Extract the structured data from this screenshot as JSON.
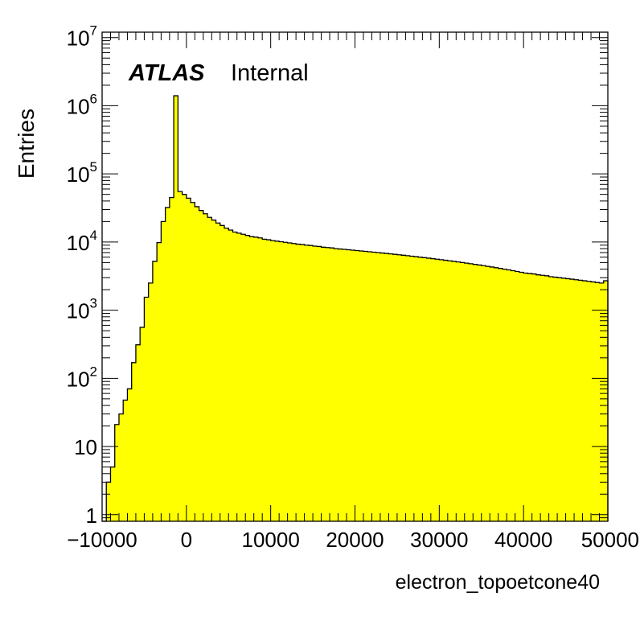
{
  "chart_data": {
    "type": "bar",
    "xlabel": "electron_topoetcone40",
    "ylabel": "Entries",
    "xlim": [
      -10000,
      50000
    ],
    "ylim": [
      0.8,
      12000000
    ],
    "ylog": true,
    "fill_color": "#ffff00",
    "line_color": "#000000",
    "bin_width": 500,
    "x_ticks": [
      "−10000",
      "0",
      "10000",
      "20000",
      "30000",
      "40000",
      "50000"
    ],
    "x_tick_values": [
      -10000,
      0,
      10000,
      20000,
      30000,
      40000,
      50000
    ],
    "y_ticks": [
      {
        "value": 1,
        "base": "1",
        "exp": ""
      },
      {
        "value": 10,
        "base": "10",
        "exp": ""
      },
      {
        "value": 100,
        "base": "10",
        "exp": "2"
      },
      {
        "value": 1000,
        "base": "10",
        "exp": "3"
      },
      {
        "value": 10000,
        "base": "10",
        "exp": "4"
      },
      {
        "value": 100000,
        "base": "10",
        "exp": "5"
      },
      {
        "value": 1000000,
        "base": "10",
        "exp": "6"
      },
      {
        "value": 10000000,
        "base": "10",
        "exp": "7"
      }
    ],
    "annotation": {
      "brand": "ATLAS",
      "label": "Internal"
    },
    "series": [
      {
        "x_start": -10000,
        "values": [
          0.6,
          3,
          5,
          21,
          30,
          48,
          70,
          170,
          310,
          560,
          1550,
          2500,
          5200,
          9800,
          20000,
          32000,
          45000,
          1400000,
          55000,
          50000,
          44000,
          38000,
          33000,
          29000,
          26000,
          23000,
          21000,
          19000,
          17500,
          16000,
          15000,
          14000,
          13500,
          13000,
          12500,
          12000,
          11800,
          11500,
          11000,
          10800,
          10500,
          10300,
          10100,
          9900,
          9700,
          9500,
          9300,
          9200,
          9000,
          8900,
          8700,
          8600,
          8400,
          8300,
          8200,
          8000,
          7900,
          7800,
          7700,
          7600,
          7500,
          7400,
          7300,
          7200,
          7100,
          7000,
          6900,
          6800,
          6700,
          6600,
          6500,
          6400,
          6300,
          6200,
          6100,
          6000,
          5900,
          5800,
          5700,
          5600,
          5500,
          5400,
          5300,
          5200,
          5100,
          5000,
          4900,
          4800,
          4700,
          4600,
          4500,
          4400,
          4300,
          4200,
          4100,
          4000,
          3900,
          3800,
          3700,
          3600,
          3500,
          3450,
          3400,
          3300,
          3250,
          3200,
          3100,
          3050,
          3000,
          2950,
          2900,
          2850,
          2800,
          2750,
          2700,
          2650,
          2600,
          2550,
          2500,
          2700
        ]
      }
    ]
  }
}
